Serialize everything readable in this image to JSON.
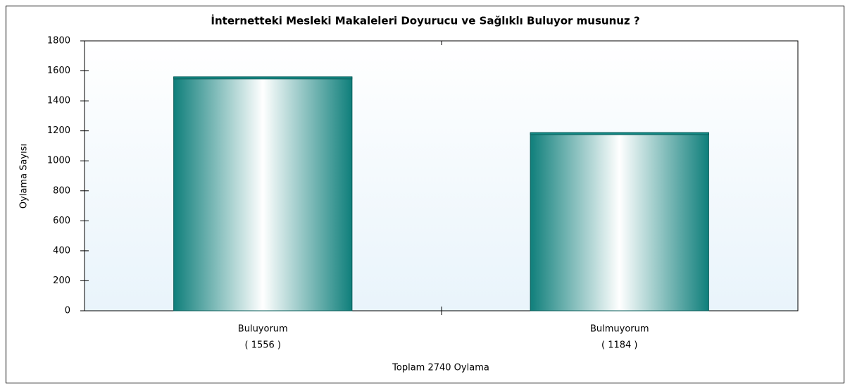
{
  "chart_data": {
    "type": "bar",
    "title": "İnternetteki Mesleki Makaleleri Doyurucu ve Sağlıklı Buluyor musunuz ?",
    "y_label": "Oylama Sayısı",
    "x_label": "Toplam 2740 Oylama",
    "categories": [
      "Buluyorum",
      "Bulmuyorum"
    ],
    "values": [
      1556,
      1184
    ],
    "value_labels": [
      "( 1556 )",
      "( 1184 )"
    ],
    "color": "#138a85",
    "ylim": [
      0,
      1800
    ],
    "yticks": [
      0,
      200,
      400,
      600,
      800,
      1000,
      1200,
      1400,
      1600,
      1800
    ]
  }
}
